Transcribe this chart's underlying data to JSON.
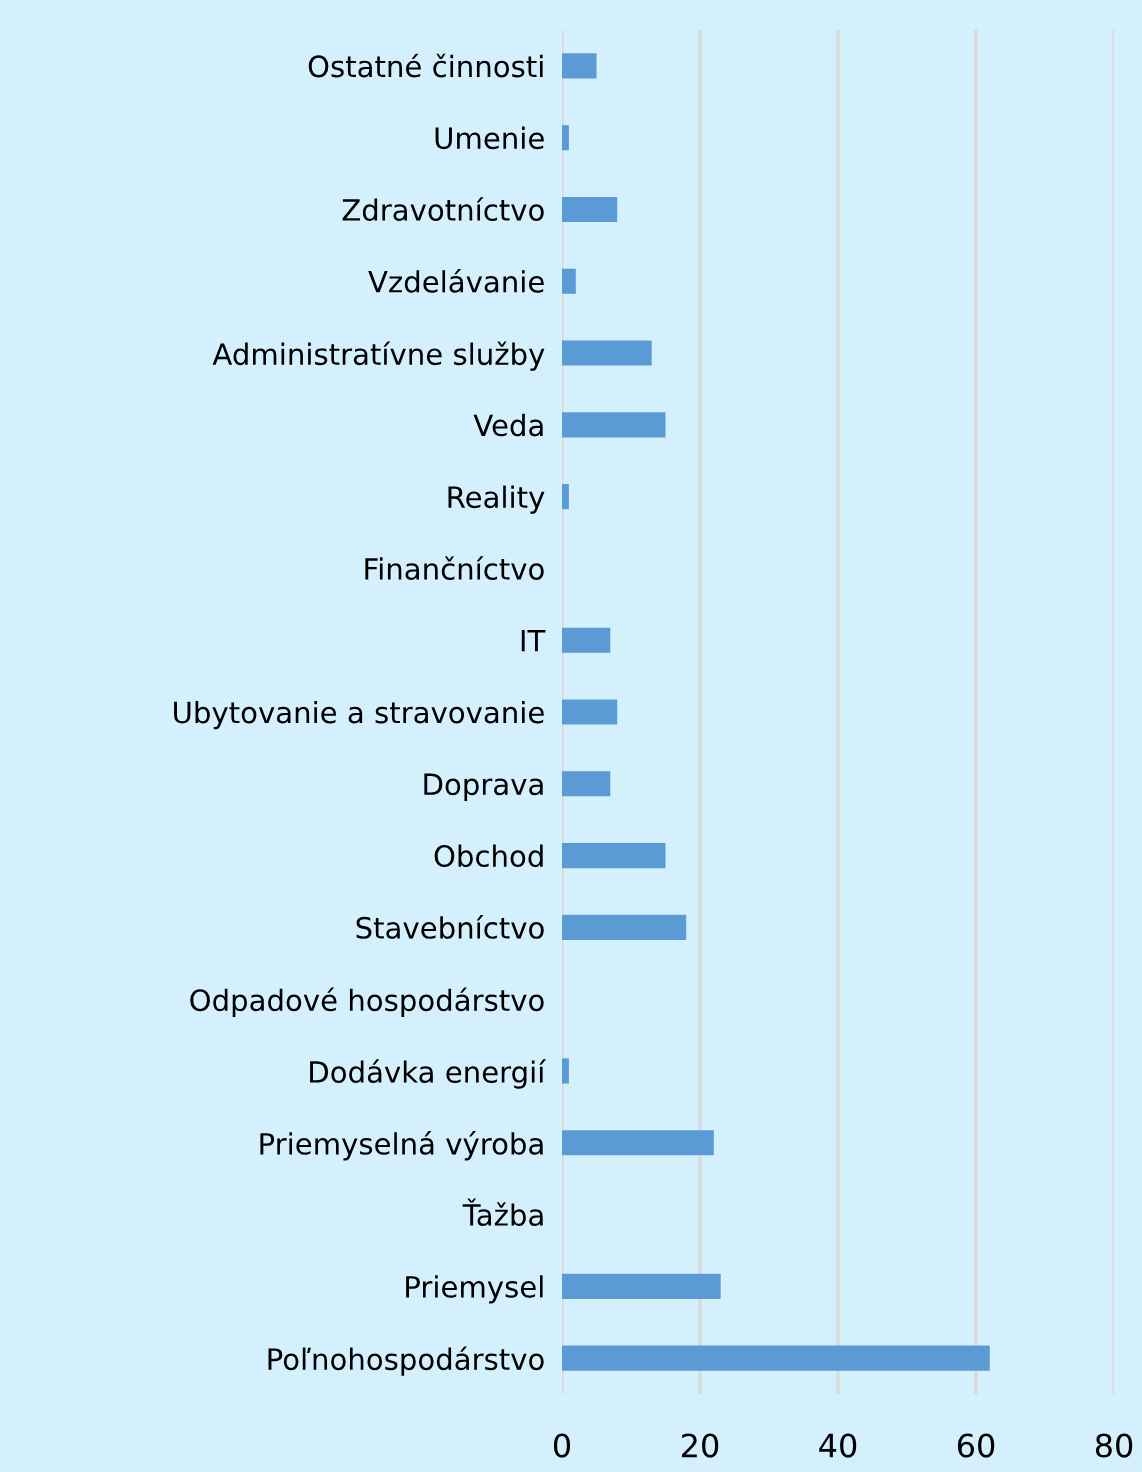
{
  "chart_data": {
    "type": "bar",
    "orientation": "horizontal",
    "categories": [
      "Ostatné činnosti",
      "Umenie",
      "Zdravotníctvo",
      "Vzdelávanie",
      "Administratívne služby",
      "Veda",
      "Reality",
      "Finančníctvo",
      "IT",
      "Ubytovanie a stravovanie",
      "Doprava",
      "Obchod",
      "Stavebníctvo",
      "Odpadové hospodárstvo",
      "Dodávka energií",
      "Priemyselná výroba",
      "Ťažba",
      "Priemysel",
      "Poľnohospodárstvo"
    ],
    "values": [
      5,
      1,
      8,
      2,
      13,
      15,
      1,
      0,
      7,
      8,
      7,
      15,
      18,
      0,
      1,
      22,
      0,
      23,
      62
    ],
    "color": "#5b9bd5",
    "xlim": [
      0,
      80
    ],
    "xticks": [
      0,
      20,
      40,
      60,
      80
    ],
    "grid": "x"
  }
}
